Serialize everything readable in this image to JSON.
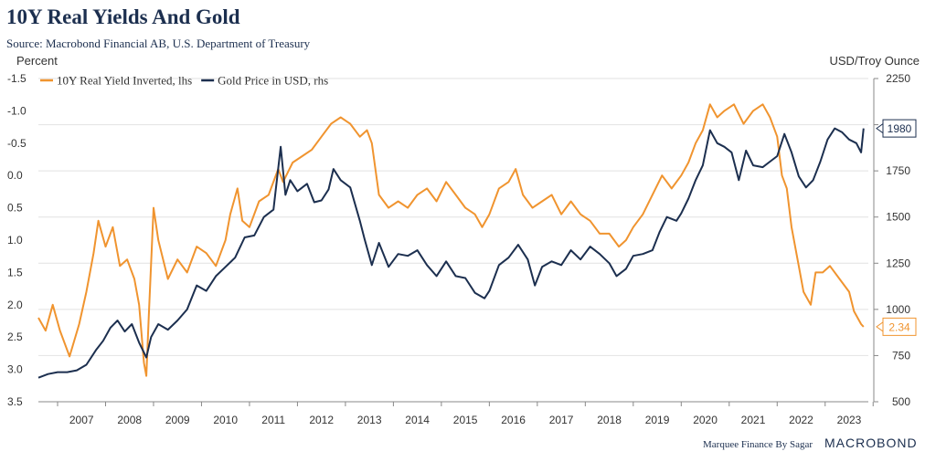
{
  "title": "10Y Real Yields And Gold",
  "subtitle": "Source: Macrobond Financial AB, U.S. Department of Treasury",
  "credit": "Marquee Finance By Sagar",
  "brand": "MACROBOND",
  "colors": {
    "gold_series": "#1c2f4f",
    "yield_series": "#f0942f",
    "grid": "#e2e2e2",
    "axis": "#888888"
  },
  "chart_data": {
    "type": "line",
    "title": "10Y Real Yields And Gold",
    "left_axis": {
      "unit_label": "Percent",
      "inverted": true,
      "range": [
        -1.5,
        3.5
      ],
      "ticks": [
        -1.5,
        -1.0,
        -0.5,
        0.0,
        0.5,
        1.0,
        1.5,
        2.0,
        2.5,
        3.0,
        3.5
      ],
      "tick_labels": [
        "-1.5",
        "-1.0",
        "-0.5",
        "0.0",
        "0.5",
        "1.0",
        "1.5",
        "2.0",
        "2.5",
        "3.0",
        "3.5"
      ]
    },
    "right_axis": {
      "unit_label": "USD/Troy Ounce",
      "range": [
        500,
        2250
      ],
      "ticks": [
        500,
        750,
        1000,
        1250,
        1500,
        1750,
        2000,
        2250
      ],
      "tick_labels": [
        "500",
        "750",
        "1000",
        "1250",
        "1500",
        "1750",
        "2000",
        "2250"
      ]
    },
    "x_axis": {
      "range": [
        2006.6,
        2023.9
      ],
      "years": [
        "2007",
        "2008",
        "2009",
        "2010",
        "2011",
        "2012",
        "2013",
        "2014",
        "2015",
        "2016",
        "2017",
        "2018",
        "2019",
        "2020",
        "2021",
        "2022",
        "2023"
      ]
    },
    "grid": true,
    "legend_position": "top-left",
    "series": [
      {
        "name": "10Y Real Yield Inverted, lhs",
        "axis": "left",
        "color": "#f0942f",
        "end_label": "2.34",
        "points": [
          [
            2006.6,
            2.2
          ],
          [
            2006.75,
            2.4
          ],
          [
            2006.9,
            2.0
          ],
          [
            2007.05,
            2.4
          ],
          [
            2007.25,
            2.8
          ],
          [
            2007.45,
            2.3
          ],
          [
            2007.6,
            1.8
          ],
          [
            2007.75,
            1.2
          ],
          [
            2007.85,
            0.7
          ],
          [
            2008.0,
            1.1
          ],
          [
            2008.15,
            0.8
          ],
          [
            2008.3,
            1.4
          ],
          [
            2008.45,
            1.3
          ],
          [
            2008.6,
            1.6
          ],
          [
            2008.7,
            2.0
          ],
          [
            2008.8,
            2.9
          ],
          [
            2008.85,
            3.1
          ],
          [
            2008.9,
            2.2
          ],
          [
            2009.0,
            0.5
          ],
          [
            2009.1,
            1.0
          ],
          [
            2009.3,
            1.6
          ],
          [
            2009.5,
            1.3
          ],
          [
            2009.7,
            1.5
          ],
          [
            2009.9,
            1.1
          ],
          [
            2010.1,
            1.2
          ],
          [
            2010.3,
            1.4
          ],
          [
            2010.5,
            1.0
          ],
          [
            2010.6,
            0.6
          ],
          [
            2010.75,
            0.2
          ],
          [
            2010.85,
            0.7
          ],
          [
            2011.0,
            0.8
          ],
          [
            2011.2,
            0.4
          ],
          [
            2011.4,
            0.3
          ],
          [
            2011.6,
            -0.1
          ],
          [
            2011.7,
            0.1
          ],
          [
            2011.9,
            -0.2
          ],
          [
            2012.1,
            -0.3
          ],
          [
            2012.3,
            -0.4
          ],
          [
            2012.5,
            -0.6
          ],
          [
            2012.7,
            -0.8
          ],
          [
            2012.9,
            -0.9
          ],
          [
            2013.1,
            -0.8
          ],
          [
            2013.3,
            -0.6
          ],
          [
            2013.45,
            -0.7
          ],
          [
            2013.55,
            -0.5
          ],
          [
            2013.7,
            0.3
          ],
          [
            2013.9,
            0.5
          ],
          [
            2014.1,
            0.4
          ],
          [
            2014.3,
            0.5
          ],
          [
            2014.5,
            0.3
          ],
          [
            2014.7,
            0.2
          ],
          [
            2014.9,
            0.4
          ],
          [
            2015.1,
            0.1
          ],
          [
            2015.3,
            0.3
          ],
          [
            2015.5,
            0.5
          ],
          [
            2015.7,
            0.6
          ],
          [
            2015.85,
            0.8
          ],
          [
            2016.0,
            0.6
          ],
          [
            2016.2,
            0.2
          ],
          [
            2016.4,
            0.1
          ],
          [
            2016.55,
            -0.1
          ],
          [
            2016.7,
            0.3
          ],
          [
            2016.9,
            0.5
          ],
          [
            2017.1,
            0.4
          ],
          [
            2017.3,
            0.3
          ],
          [
            2017.5,
            0.6
          ],
          [
            2017.7,
            0.4
          ],
          [
            2017.9,
            0.6
          ],
          [
            2018.1,
            0.7
          ],
          [
            2018.3,
            0.9
          ],
          [
            2018.5,
            0.9
          ],
          [
            2018.7,
            1.1
          ],
          [
            2018.85,
            1.0
          ],
          [
            2019.0,
            0.8
          ],
          [
            2019.2,
            0.6
          ],
          [
            2019.4,
            0.3
          ],
          [
            2019.6,
            0.0
          ],
          [
            2019.8,
            0.2
          ],
          [
            2020.0,
            0.0
          ],
          [
            2020.15,
            -0.2
          ],
          [
            2020.3,
            -0.5
          ],
          [
            2020.45,
            -0.7
          ],
          [
            2020.6,
            -1.1
          ],
          [
            2020.75,
            -0.9
          ],
          [
            2020.9,
            -1.0
          ],
          [
            2021.1,
            -1.1
          ],
          [
            2021.3,
            -0.8
          ],
          [
            2021.5,
            -1.0
          ],
          [
            2021.7,
            -1.1
          ],
          [
            2021.85,
            -0.9
          ],
          [
            2022.0,
            -0.6
          ],
          [
            2022.1,
            0.0
          ],
          [
            2022.2,
            0.2
          ],
          [
            2022.3,
            0.8
          ],
          [
            2022.45,
            1.4
          ],
          [
            2022.55,
            1.8
          ],
          [
            2022.7,
            2.0
          ],
          [
            2022.8,
            1.5
          ],
          [
            2022.95,
            1.5
          ],
          [
            2023.1,
            1.4
          ],
          [
            2023.3,
            1.6
          ],
          [
            2023.5,
            1.8
          ],
          [
            2023.6,
            2.1
          ],
          [
            2023.75,
            2.3
          ],
          [
            2023.8,
            2.34
          ]
        ]
      },
      {
        "name": "Gold Price in USD, rhs",
        "axis": "right",
        "color": "#1c2f4f",
        "end_label": "1980",
        "points": [
          [
            2006.6,
            630
          ],
          [
            2006.8,
            650
          ],
          [
            2007.0,
            660
          ],
          [
            2007.2,
            660
          ],
          [
            2007.4,
            670
          ],
          [
            2007.6,
            700
          ],
          [
            2007.8,
            780
          ],
          [
            2007.95,
            830
          ],
          [
            2008.1,
            900
          ],
          [
            2008.25,
            940
          ],
          [
            2008.4,
            880
          ],
          [
            2008.55,
            920
          ],
          [
            2008.7,
            820
          ],
          [
            2008.85,
            740
          ],
          [
            2008.95,
            850
          ],
          [
            2009.1,
            920
          ],
          [
            2009.3,
            890
          ],
          [
            2009.5,
            940
          ],
          [
            2009.7,
            1000
          ],
          [
            2009.9,
            1130
          ],
          [
            2010.1,
            1100
          ],
          [
            2010.3,
            1180
          ],
          [
            2010.5,
            1230
          ],
          [
            2010.7,
            1280
          ],
          [
            2010.9,
            1390
          ],
          [
            2011.1,
            1400
          ],
          [
            2011.3,
            1500
          ],
          [
            2011.5,
            1540
          ],
          [
            2011.65,
            1880
          ],
          [
            2011.75,
            1620
          ],
          [
            2011.85,
            1700
          ],
          [
            2012.0,
            1640
          ],
          [
            2012.2,
            1680
          ],
          [
            2012.35,
            1580
          ],
          [
            2012.5,
            1590
          ],
          [
            2012.65,
            1650
          ],
          [
            2012.75,
            1760
          ],
          [
            2012.9,
            1700
          ],
          [
            2013.1,
            1660
          ],
          [
            2013.3,
            1480
          ],
          [
            2013.4,
            1380
          ],
          [
            2013.55,
            1240
          ],
          [
            2013.7,
            1360
          ],
          [
            2013.9,
            1230
          ],
          [
            2014.1,
            1300
          ],
          [
            2014.3,
            1290
          ],
          [
            2014.5,
            1320
          ],
          [
            2014.7,
            1240
          ],
          [
            2014.9,
            1180
          ],
          [
            2015.1,
            1260
          ],
          [
            2015.3,
            1180
          ],
          [
            2015.5,
            1170
          ],
          [
            2015.7,
            1090
          ],
          [
            2015.9,
            1060
          ],
          [
            2016.0,
            1100
          ],
          [
            2016.2,
            1240
          ],
          [
            2016.4,
            1280
          ],
          [
            2016.6,
            1350
          ],
          [
            2016.8,
            1270
          ],
          [
            2016.95,
            1130
          ],
          [
            2017.1,
            1230
          ],
          [
            2017.3,
            1260
          ],
          [
            2017.5,
            1240
          ],
          [
            2017.7,
            1320
          ],
          [
            2017.9,
            1270
          ],
          [
            2018.1,
            1340
          ],
          [
            2018.3,
            1300
          ],
          [
            2018.5,
            1250
          ],
          [
            2018.65,
            1180
          ],
          [
            2018.85,
            1220
          ],
          [
            2019.0,
            1290
          ],
          [
            2019.2,
            1300
          ],
          [
            2019.4,
            1320
          ],
          [
            2019.55,
            1420
          ],
          [
            2019.7,
            1500
          ],
          [
            2019.9,
            1480
          ],
          [
            2020.0,
            1520
          ],
          [
            2020.15,
            1600
          ],
          [
            2020.3,
            1700
          ],
          [
            2020.45,
            1780
          ],
          [
            2020.6,
            1970
          ],
          [
            2020.75,
            1900
          ],
          [
            2020.9,
            1880
          ],
          [
            2021.05,
            1850
          ],
          [
            2021.2,
            1700
          ],
          [
            2021.35,
            1860
          ],
          [
            2021.5,
            1780
          ],
          [
            2021.7,
            1770
          ],
          [
            2021.85,
            1800
          ],
          [
            2022.0,
            1830
          ],
          [
            2022.15,
            1950
          ],
          [
            2022.3,
            1850
          ],
          [
            2022.45,
            1720
          ],
          [
            2022.6,
            1660
          ],
          [
            2022.75,
            1700
          ],
          [
            2022.9,
            1800
          ],
          [
            2023.05,
            1920
          ],
          [
            2023.2,
            1980
          ],
          [
            2023.35,
            1960
          ],
          [
            2023.5,
            1920
          ],
          [
            2023.65,
            1900
          ],
          [
            2023.75,
            1850
          ],
          [
            2023.8,
            1980
          ]
        ]
      }
    ]
  }
}
